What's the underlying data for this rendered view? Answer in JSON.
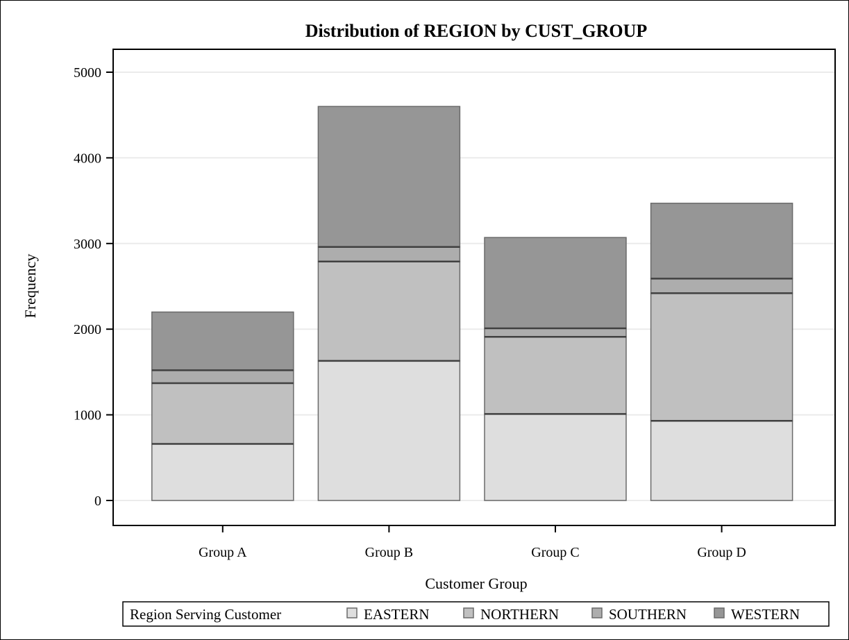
{
  "chart_data": {
    "type": "bar",
    "stacked": true,
    "title": "Distribution of REGION by CUST_GROUP",
    "xlabel": "Customer Group",
    "ylabel": "Frequency",
    "categories": [
      "Group A",
      "Group B",
      "Group C",
      "Group D"
    ],
    "yticks": [
      "0",
      "1000",
      "2000",
      "3000",
      "4000",
      "5000"
    ],
    "ylim": [
      0,
      5250
    ],
    "grid": true,
    "legend": {
      "title": "Region Serving Customer",
      "placement": "bottom"
    },
    "series": [
      {
        "name": "EASTERN",
        "color": "#dedede",
        "values": [
          660,
          1630,
          1010,
          930
        ]
      },
      {
        "name": "NORTHERN",
        "color": "#c0c0c0",
        "values": [
          710,
          1160,
          900,
          1490
        ]
      },
      {
        "name": "SOUTHERN",
        "color": "#adadad",
        "values": [
          150,
          170,
          100,
          170
        ]
      },
      {
        "name": "WESTERN",
        "color": "#969696",
        "values": [
          680,
          1640,
          1060,
          880
        ]
      }
    ]
  }
}
